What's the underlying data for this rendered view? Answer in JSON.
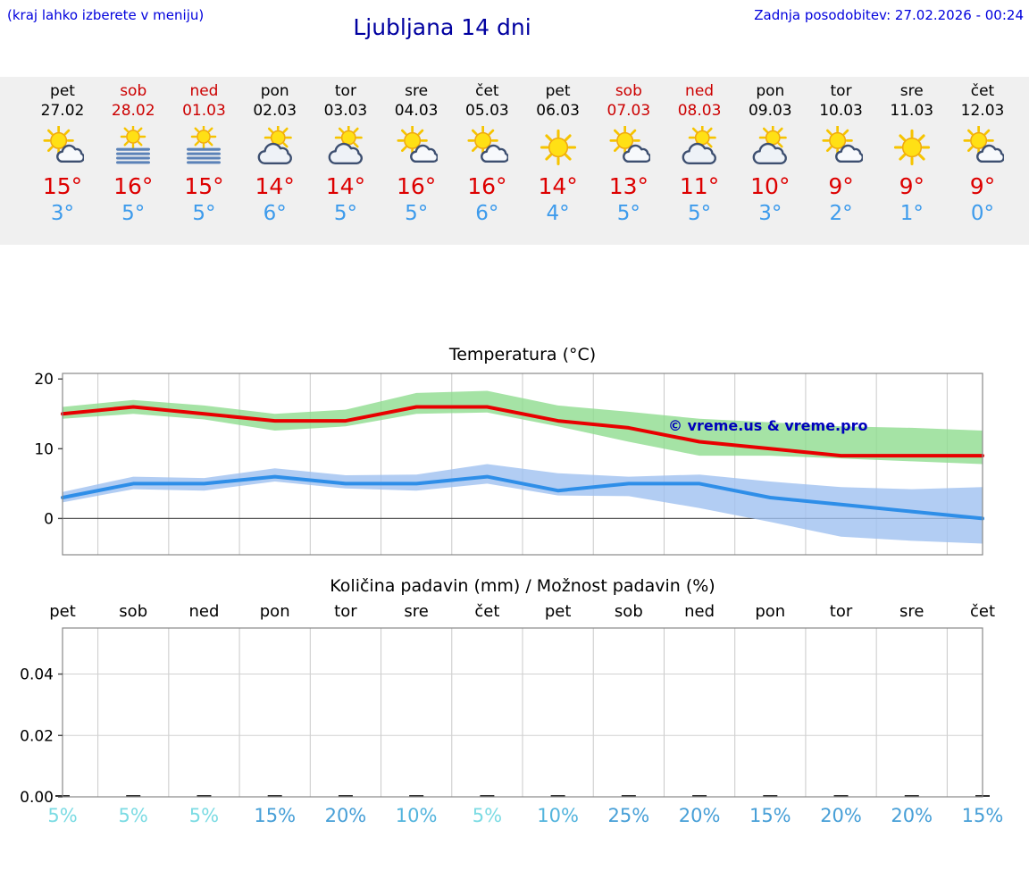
{
  "header": {
    "menu_hint": "(kraj lahko izberete v meniju)",
    "title": "Ljubljana 14 dni",
    "last_update": "Zadnja posodobitev: 27.02.2026 - 00:24"
  },
  "colors": {
    "link_blue": "#0000dd",
    "title_blue": "#0000a0",
    "weekend_red": "#cc0000",
    "high_red": "#dd0000",
    "low_blue": "#3d9bec",
    "strip_bg": "#f0f0f0",
    "temp_max_line": "#e80000",
    "temp_min_line": "#2e8ee8",
    "band_green": "#8edc8e",
    "band_blue": "#9fc0f0",
    "watermark_blue": "#0000bb",
    "prob_light": "#7bdbe3",
    "prob_mid": "#53b4dd",
    "prob_dark": "#479fd7"
  },
  "forecast": {
    "days": [
      {
        "name": "pet",
        "date": "27.02",
        "icon": "sun-cloud",
        "high": "15°",
        "low": "3°",
        "weekend": false
      },
      {
        "name": "sob",
        "date": "28.02",
        "icon": "sun-fog",
        "high": "16°",
        "low": "5°",
        "weekend": true
      },
      {
        "name": "ned",
        "date": "01.03",
        "icon": "sun-fog",
        "high": "15°",
        "low": "5°",
        "weekend": true
      },
      {
        "name": "pon",
        "date": "02.03",
        "icon": "cloud-sun",
        "high": "14°",
        "low": "6°",
        "weekend": false
      },
      {
        "name": "tor",
        "date": "03.03",
        "icon": "cloud-sun",
        "high": "14°",
        "low": "5°",
        "weekend": false
      },
      {
        "name": "sre",
        "date": "04.03",
        "icon": "sun-cloud",
        "high": "16°",
        "low": "5°",
        "weekend": false
      },
      {
        "name": "čet",
        "date": "05.03",
        "icon": "sun-cloud",
        "high": "16°",
        "low": "6°",
        "weekend": false
      },
      {
        "name": "pet",
        "date": "06.03",
        "icon": "sun",
        "high": "14°",
        "low": "4°",
        "weekend": false
      },
      {
        "name": "sob",
        "date": "07.03",
        "icon": "sun-cloud",
        "high": "13°",
        "low": "5°",
        "weekend": true
      },
      {
        "name": "ned",
        "date": "08.03",
        "icon": "cloud-sun",
        "high": "11°",
        "low": "5°",
        "weekend": true
      },
      {
        "name": "pon",
        "date": "09.03",
        "icon": "cloud-sun",
        "high": "10°",
        "low": "3°",
        "weekend": false
      },
      {
        "name": "tor",
        "date": "10.03",
        "icon": "sun-cloud",
        "high": "9°",
        "low": "2°",
        "weekend": false
      },
      {
        "name": "sre",
        "date": "11.03",
        "icon": "sun",
        "high": "9°",
        "low": "1°",
        "weekend": false
      },
      {
        "name": "čet",
        "date": "12.03",
        "icon": "sun-cloud",
        "high": "9°",
        "low": "0°",
        "weekend": false
      }
    ]
  },
  "chart_data": [
    {
      "type": "line",
      "title": "Temperatura (°C)",
      "x_labels": [
        "pet",
        "sob",
        "ned",
        "pon",
        "tor",
        "sre",
        "čet",
        "pet",
        "sob",
        "ned",
        "pon",
        "tor",
        "sre",
        "čet"
      ],
      "ylim": [
        -5.2,
        20.8
      ],
      "yticks": [
        0,
        10,
        20
      ],
      "grid": "vertical-per-day",
      "legend": "none",
      "watermark": "© vreme.us & vreme.pro",
      "series": [
        {
          "name": "max_temp",
          "color": "#e80000",
          "values": [
            15,
            16,
            15,
            14,
            14,
            16,
            16,
            14,
            13,
            11,
            10,
            9,
            9,
            9
          ]
        },
        {
          "name": "min_temp",
          "color": "#2e8ee8",
          "values": [
            3,
            5,
            5,
            6,
            5,
            5,
            6,
            4,
            5,
            5,
            3,
            2,
            1,
            0
          ]
        }
      ],
      "bands": [
        {
          "name": "max_temp_range",
          "color": "#8edc8e",
          "upper": [
            16,
            17,
            16.2,
            15,
            15.6,
            18,
            18.3,
            16.2,
            15.3,
            14.3,
            13.8,
            13.2,
            13,
            12.6
          ],
          "lower": [
            14.3,
            15,
            14.2,
            12.6,
            13.2,
            15,
            15.2,
            13.2,
            11,
            9,
            9,
            8.6,
            8.2,
            7.8
          ]
        },
        {
          "name": "min_temp_range",
          "color": "#9fc0f0",
          "upper": [
            3.8,
            6,
            5.8,
            7.2,
            6.2,
            6.3,
            7.8,
            6.5,
            6,
            6.3,
            5.3,
            4.5,
            4.2,
            4.5
          ],
          "lower": [
            2.3,
            4.2,
            4,
            5.3,
            4.3,
            4,
            5,
            3.3,
            3.2,
            1.5,
            -0.5,
            -2.6,
            -3.2,
            -3.6
          ]
        }
      ]
    },
    {
      "type": "bar",
      "title": "Količina padavin (mm) / Možnost padavin (%)",
      "x_labels": [
        "pet",
        "sob",
        "ned",
        "pon",
        "tor",
        "sre",
        "čet",
        "pet",
        "sob",
        "ned",
        "pon",
        "tor",
        "sre",
        "čet"
      ],
      "ylim": [
        0,
        0.055
      ],
      "yticks": [
        0,
        0.02,
        0.04
      ],
      "grid": "vertical-per-day-and-horizontal",
      "values": [
        0,
        0,
        0,
        0,
        0,
        0,
        0,
        0,
        0,
        0,
        0,
        0,
        0,
        0
      ],
      "probabilities": [
        {
          "label": "5%",
          "tone": "light"
        },
        {
          "label": "5%",
          "tone": "light"
        },
        {
          "label": "5%",
          "tone": "light"
        },
        {
          "label": "15%",
          "tone": "dark"
        },
        {
          "label": "20%",
          "tone": "dark"
        },
        {
          "label": "10%",
          "tone": "mid"
        },
        {
          "label": "5%",
          "tone": "light"
        },
        {
          "label": "10%",
          "tone": "mid"
        },
        {
          "label": "25%",
          "tone": "dark"
        },
        {
          "label": "20%",
          "tone": "dark"
        },
        {
          "label": "15%",
          "tone": "dark"
        },
        {
          "label": "20%",
          "tone": "dark"
        },
        {
          "label": "20%",
          "tone": "dark"
        },
        {
          "label": "15%",
          "tone": "dark"
        }
      ]
    }
  ]
}
